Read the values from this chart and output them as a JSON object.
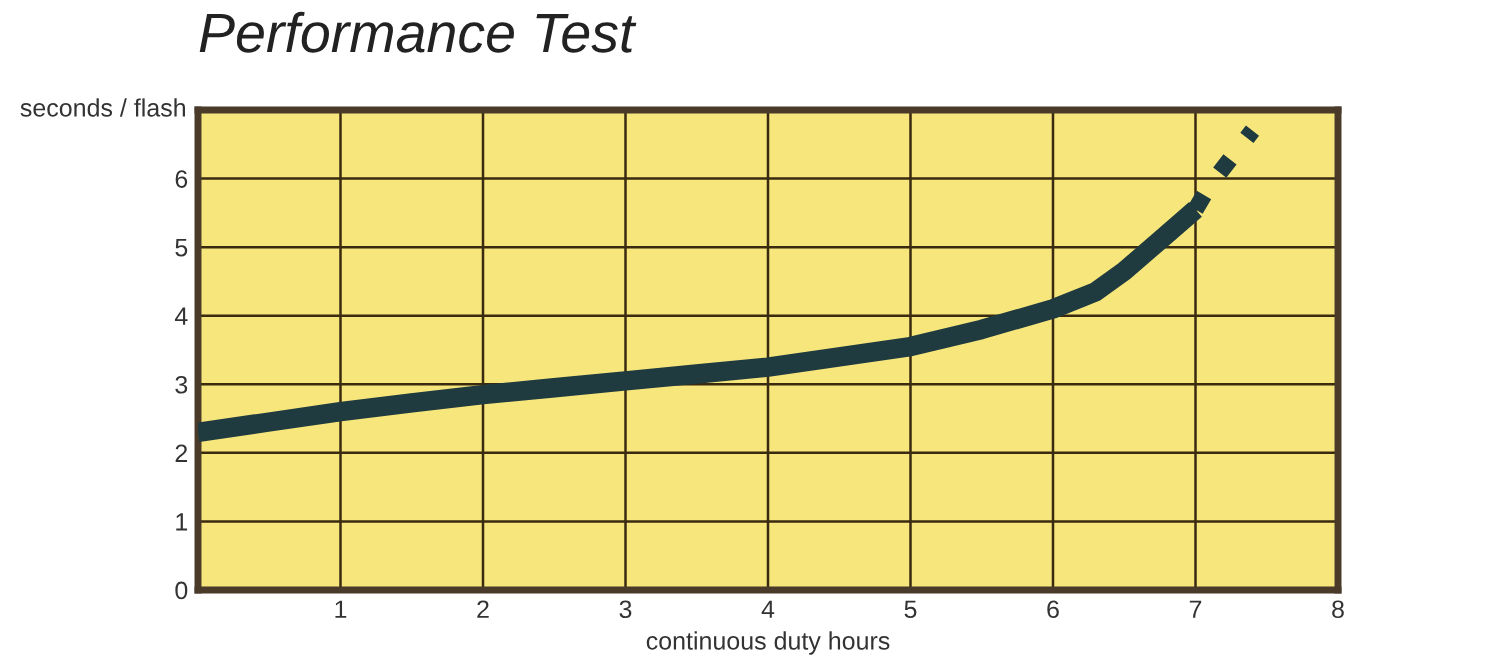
{
  "chart_data": {
    "type": "line",
    "title": "Performance Test",
    "xlabel": "continuous duty hours",
    "ylabel": "seconds / flash",
    "series": [
      {
        "x": [
          0,
          0.5,
          1,
          1.5,
          2,
          2.5,
          3,
          3.5,
          4,
          4.5,
          5,
          5.5,
          6,
          6.3,
          6.5,
          6.75,
          7
        ],
        "values": [
          2.3,
          2.45,
          2.6,
          2.73,
          2.85,
          2.95,
          3.05,
          3.15,
          3.25,
          3.4,
          3.55,
          3.8,
          4.1,
          4.35,
          4.65,
          5.1,
          5.55
        ],
        "color": "#1f3b40",
        "line_style": "solid"
      },
      {
        "x": [
          7,
          7.1,
          7.25,
          7.4
        ],
        "values": [
          5.55,
          5.9,
          6.3,
          6.7
        ],
        "color": "#1f3b40",
        "line_style": "dotted"
      }
    ],
    "xlim": [
      0,
      8
    ],
    "xticks": [
      {
        "value": 0,
        "label": null
      },
      1,
      2,
      3,
      4,
      5,
      6,
      7,
      8
    ],
    "ylim": [
      0,
      7
    ],
    "yticks": [
      0,
      1,
      2,
      3,
      4,
      5,
      6,
      {
        "value": 7,
        "label": null
      }
    ],
    "grid": true
  }
}
